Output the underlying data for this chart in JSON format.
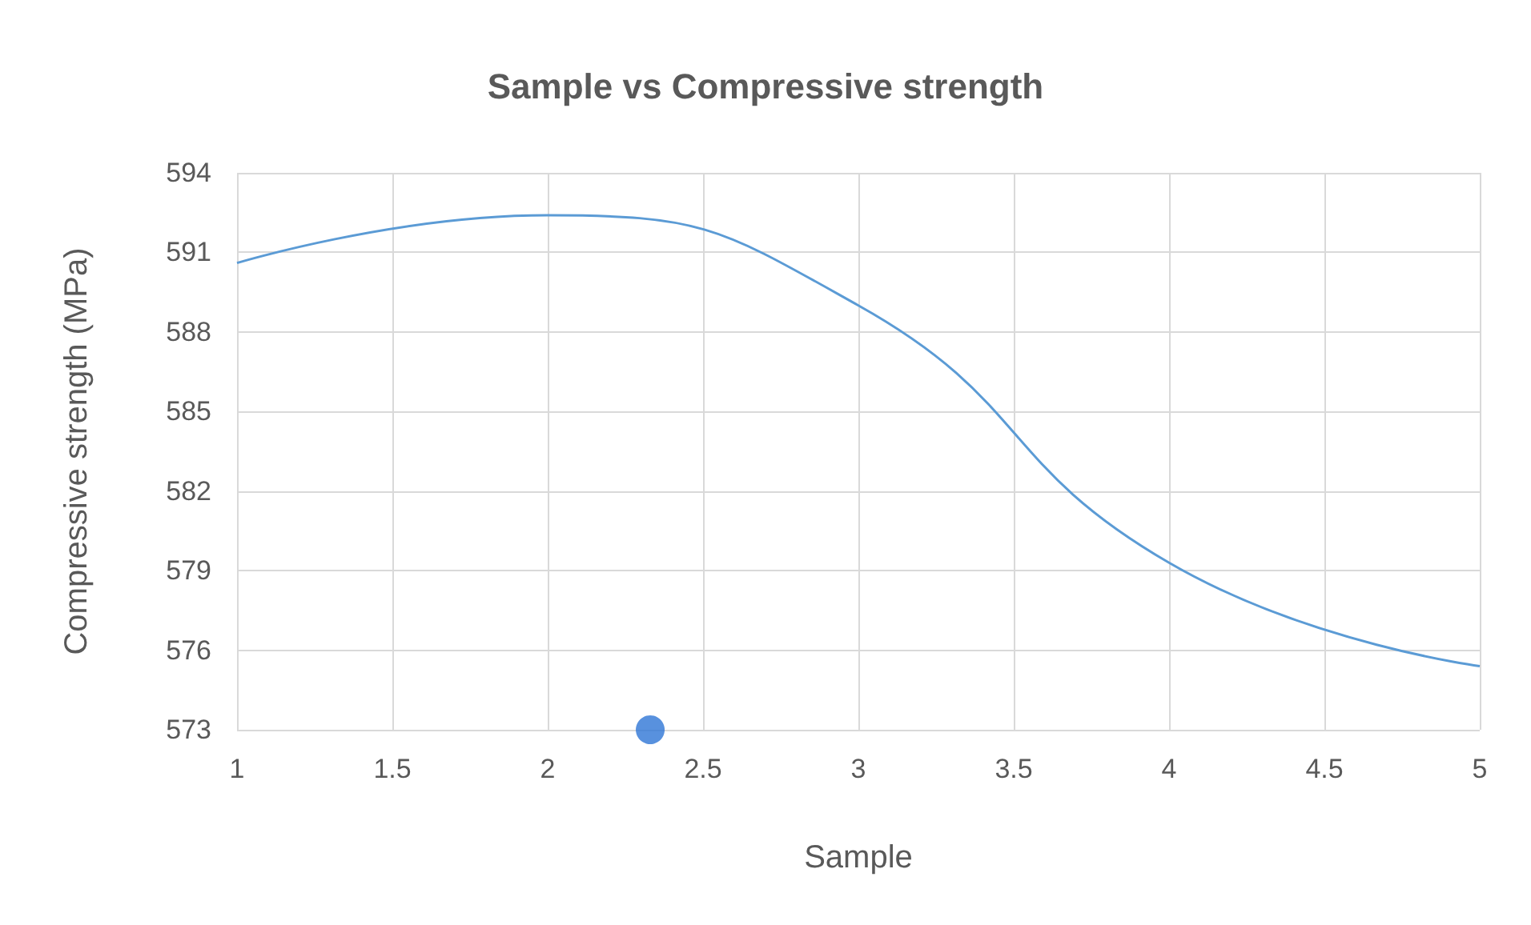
{
  "chart_data": {
    "type": "line",
    "title": "Sample vs Compressive strength",
    "xlabel": "Sample",
    "ylabel": "Compressive strength (MPa)",
    "series": [
      {
        "color": "#5b9bd5",
        "marker": "none",
        "x": [
          1,
          2,
          3,
          4,
          5
        ],
        "values": [
          590.6,
          592.4,
          589.0,
          579.3,
          575.4
        ]
      },
      {
        "type": "scatter",
        "marker": "circle",
        "color": "#2e75d6",
        "x": [
          2.33
        ],
        "values": [
          573
        ]
      }
    ],
    "xlim": [
      1,
      5
    ],
    "xticks": [
      1,
      1.5,
      2,
      2.5,
      3,
      3.5,
      4,
      4.5,
      5
    ],
    "ylim": [
      573,
      594
    ],
    "yticks": [
      573,
      576,
      579,
      582,
      585,
      588,
      591,
      594
    ],
    "grid": true
  }
}
